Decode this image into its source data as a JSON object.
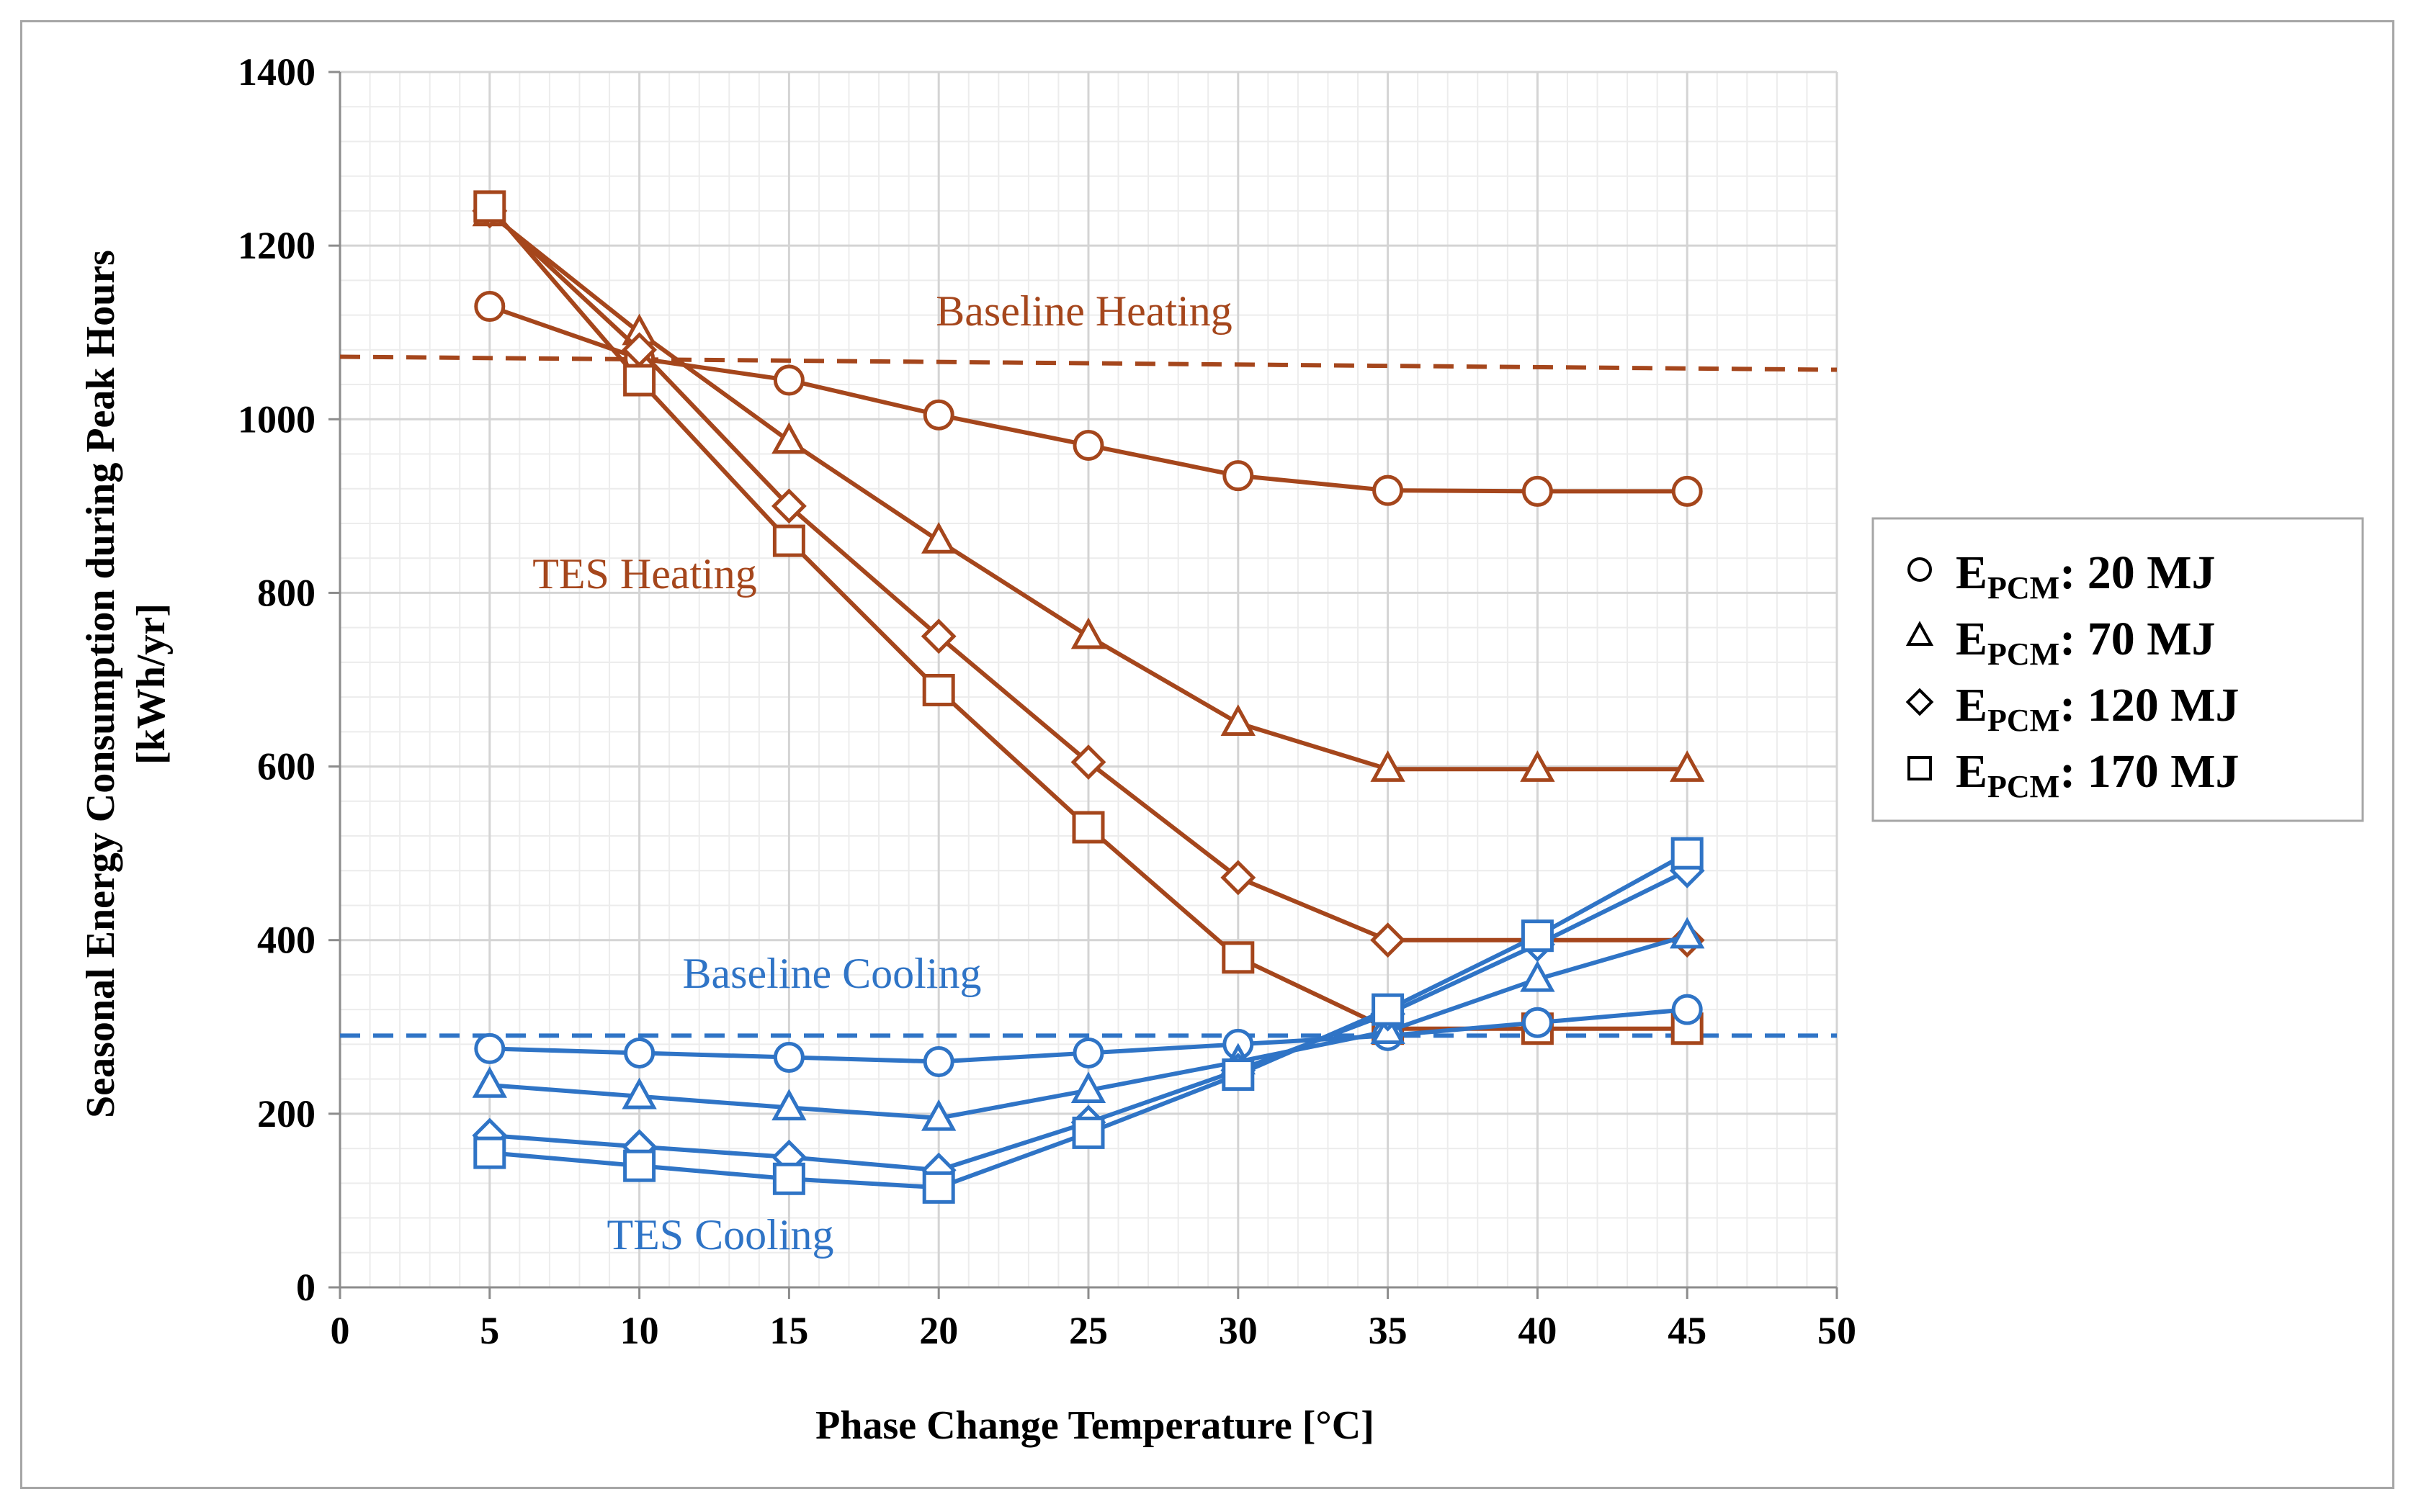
{
  "chart_data": {
    "type": "line",
    "xlabel": "Phase Change Temperature [°C]",
    "ylabel_line1": "Seasonal Energy Consumption during Peak Hours",
    "ylabel_line2": "[kWh/yr]",
    "xlim": [
      0,
      50
    ],
    "ylim": [
      0,
      1400
    ],
    "xticks": [
      0,
      5,
      10,
      15,
      20,
      25,
      30,
      35,
      40,
      45,
      50
    ],
    "yticks": [
      0,
      200,
      400,
      600,
      800,
      1000,
      1200,
      1400
    ],
    "grid": true,
    "legend_position": "right",
    "x": [
      5,
      10,
      15,
      20,
      25,
      30,
      35,
      40,
      45
    ],
    "colors": {
      "heating": "#a5461c",
      "cooling": "#2f74c6"
    },
    "baselines": [
      {
        "label": "Baseline Heating",
        "group": "heating",
        "values": [
          1072,
          1057
        ]
      },
      {
        "label": "Baseline Cooling",
        "group": "cooling",
        "values": [
          290,
          290
        ]
      }
    ],
    "annotations": [
      {
        "text": "Baseline Heating",
        "group": "heating"
      },
      {
        "text": "TES Heating",
        "group": "heating"
      },
      {
        "text": "Baseline Cooling",
        "group": "cooling"
      },
      {
        "text": "TES Cooling",
        "group": "cooling"
      }
    ],
    "series": [
      {
        "group": "heating",
        "marker": "circle",
        "values": [
          1130,
          1070,
          1045,
          1005,
          970,
          935,
          918,
          917,
          917
        ]
      },
      {
        "group": "heating",
        "marker": "triangle",
        "values": [
          1237,
          1100,
          975,
          860,
          750,
          650,
          597,
          597,
          597
        ]
      },
      {
        "group": "heating",
        "marker": "diamond",
        "values": [
          1240,
          1080,
          900,
          750,
          605,
          472,
          400,
          400,
          400
        ]
      },
      {
        "group": "heating",
        "marker": "square",
        "values": [
          1245,
          1045,
          860,
          688,
          530,
          380,
          298,
          298,
          298
        ]
      },
      {
        "group": "cooling",
        "marker": "circle",
        "values": [
          275,
          270,
          265,
          260,
          270,
          280,
          290,
          305,
          320
        ]
      },
      {
        "group": "cooling",
        "marker": "triangle",
        "values": [
          233,
          220,
          207,
          195,
          227,
          260,
          295,
          355,
          405
        ]
      },
      {
        "group": "cooling",
        "marker": "diamond",
        "values": [
          175,
          162,
          150,
          135,
          190,
          250,
          315,
          395,
          480
        ]
      },
      {
        "group": "cooling",
        "marker": "square",
        "values": [
          155,
          140,
          125,
          115,
          178,
          245,
          320,
          405,
          500
        ]
      }
    ],
    "legend": [
      {
        "marker": "circle",
        "main": "E",
        "sub": "PCM",
        "rest": ": 20 MJ"
      },
      {
        "marker": "triangle",
        "main": "E",
        "sub": "PCM",
        "rest": ": 70 MJ"
      },
      {
        "marker": "diamond",
        "main": "E",
        "sub": "PCM",
        "rest": ": 120 MJ"
      },
      {
        "marker": "square",
        "main": "E",
        "sub": "PCM",
        "rest": ": 170 MJ"
      }
    ]
  }
}
